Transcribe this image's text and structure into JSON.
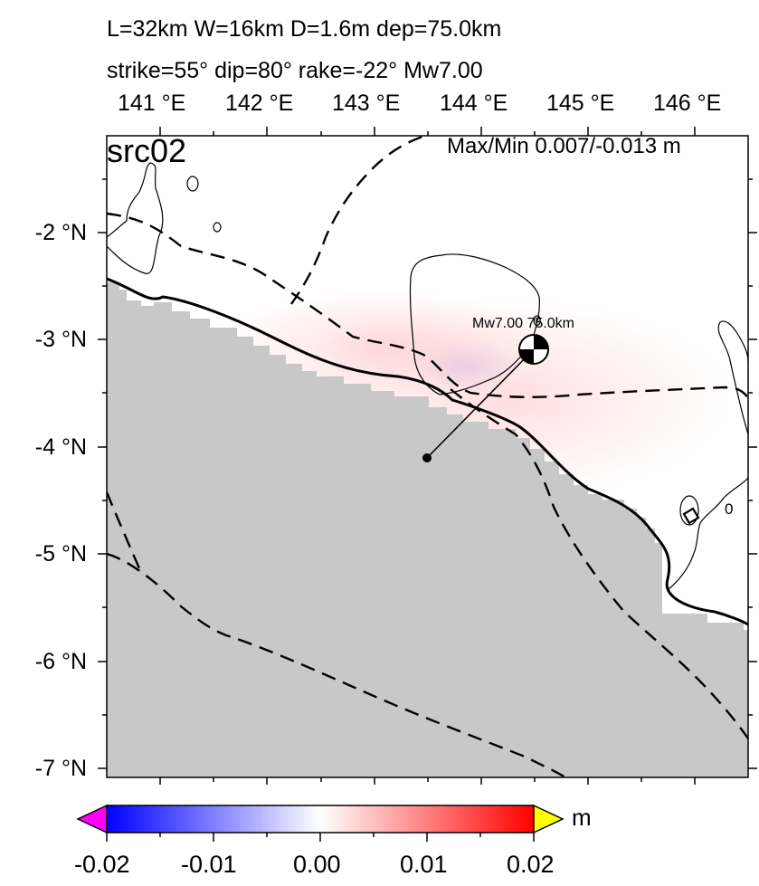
{
  "title": {
    "line1": "L=32km W=16km D=1.6m dep=75.0km",
    "line2": "strike=55° dip=80° rake=-22° Mw7.00"
  },
  "map": {
    "source_label": "src02",
    "max_min": "Max/Min 0.007/-0.013 m",
    "lon_ticks": [
      "141 °E",
      "142 °E",
      "143 °E",
      "144 °E",
      "145 °E",
      "146 °E"
    ],
    "lat_ticks": [
      "-2 °N",
      "-3 °N",
      "-4 °N",
      "-5 °N",
      "-6 °N",
      "-7 °N"
    ],
    "event_label": "Mw7.00 75.0km",
    "contour_labels": [
      "0",
      "0"
    ],
    "colors": {
      "land": "#c8c8c8",
      "uplift": "#ff0000",
      "subsidence": "#0000ff",
      "below_range": "#ff00ff",
      "above_range": "#ffff00"
    }
  },
  "colorbar": {
    "ticks": [
      "-0.02",
      "-0.01",
      "0.00",
      "0.01",
      "0.02"
    ],
    "unit": "m",
    "range": [
      -0.02,
      0.02
    ]
  }
}
